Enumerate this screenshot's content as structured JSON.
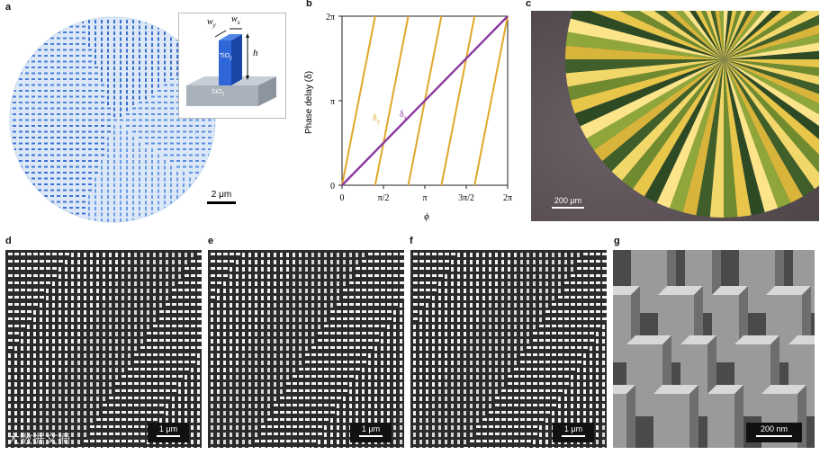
{
  "panels": {
    "a": {
      "label": "a",
      "inset": {
        "wy": "w",
        "wy_sub": "y",
        "wx": "w",
        "wx_sub": "x",
        "h": "h",
        "tio2": "TiO",
        "tio2_sub": "2",
        "sio2": "SiO",
        "sio2_sub": "2"
      },
      "scale": "2 μm"
    },
    "b": {
      "label": "b"
    },
    "c": {
      "label": "c",
      "scale": "200 μm"
    },
    "d": {
      "label": "d",
      "scale": "1 μm"
    },
    "e": {
      "label": "e",
      "scale": "1 μm"
    },
    "f": {
      "label": "f",
      "scale": "1 μm"
    },
    "g": {
      "label": "g",
      "scale": "200 nm"
    }
  },
  "chart_data": {
    "type": "line",
    "xlabel": "ϕ",
    "ylabel": "Phase delay (δ)",
    "xlim": [
      0,
      6.2832
    ],
    "ylim": [
      0,
      6.2832
    ],
    "xticks": [
      "0",
      "π/2",
      "π",
      "3π/2",
      "2π"
    ],
    "yticks": [
      "0",
      "π",
      "2π"
    ],
    "series": [
      {
        "name": "δx",
        "color": "#8a3a9e",
        "x": [
          0,
          6.2832
        ],
        "y": [
          0,
          6.2832
        ]
      },
      {
        "name": "δy",
        "color": "#e0a82a",
        "segments": [
          {
            "x": [
              0,
              1.2566
            ],
            "y": [
              0,
              6.2832
            ]
          },
          {
            "x": [
              1.2566,
              2.5133
            ],
            "y": [
              0,
              6.2832
            ]
          },
          {
            "x": [
              2.5133,
              3.7699
            ],
            "y": [
              0,
              6.2832
            ]
          },
          {
            "x": [
              3.7699,
              5.0265
            ],
            "y": [
              0,
              6.2832
            ]
          },
          {
            "x": [
              5.0265,
              6.2832
            ],
            "y": [
              0,
              6.2832
            ]
          }
        ]
      }
    ],
    "annotations": [
      {
        "text": "δ",
        "sub": "y",
        "color": "#e0a82a"
      },
      {
        "text": "δ",
        "sub": "x",
        "color": "#8a3a9e"
      }
    ]
  },
  "watermark": "大数据文摘"
}
